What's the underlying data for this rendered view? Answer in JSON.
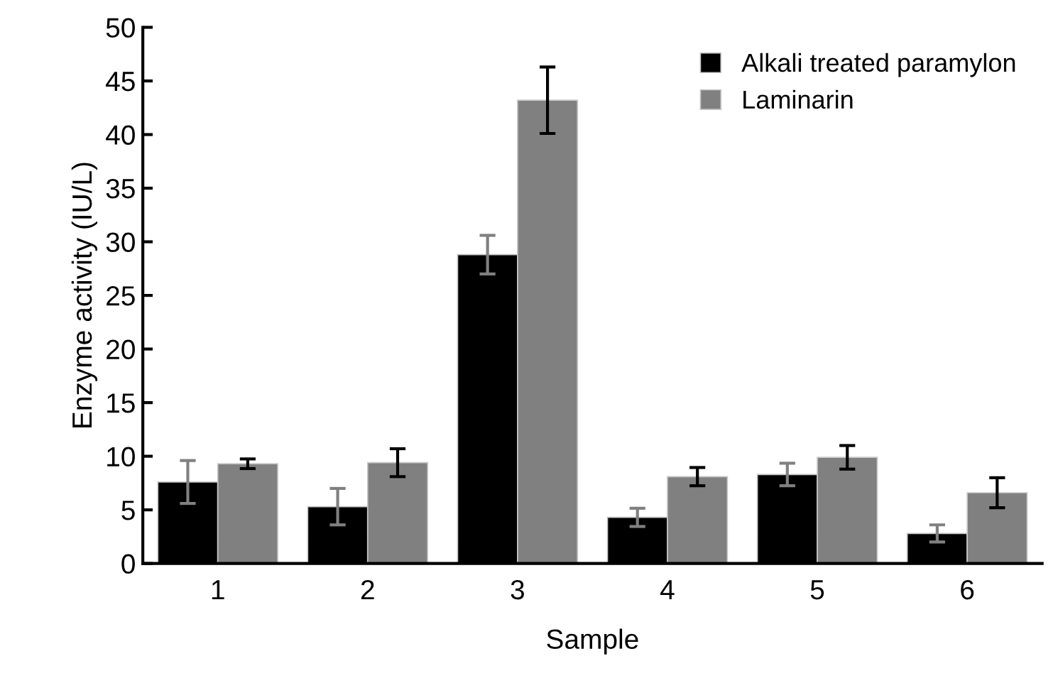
{
  "chart_data": {
    "type": "bar",
    "xlabel": "Sample",
    "ylabel": "Enzyme activity (IU/L)",
    "categories": [
      "1",
      "2",
      "3",
      "4",
      "5",
      "6"
    ],
    "series": [
      {
        "name": "Alkali treated paramylon",
        "color": "#000000",
        "values": [
          7.6,
          5.3,
          28.8,
          4.3,
          8.3,
          2.8
        ],
        "errors": [
          2.0,
          1.7,
          1.8,
          0.85,
          1.05,
          0.8
        ]
      },
      {
        "name": "Laminarin",
        "color": "#808080",
        "values": [
          9.3,
          9.4,
          43.2,
          8.1,
          9.9,
          6.6
        ],
        "errors": [
          0.45,
          1.3,
          3.1,
          0.85,
          1.1,
          1.4
        ]
      }
    ],
    "ylim": [
      0,
      50
    ],
    "yticks": [
      0,
      5,
      10,
      15,
      20,
      25,
      30,
      35,
      40,
      45,
      50
    ],
    "grid": false,
    "legend": "top right"
  }
}
